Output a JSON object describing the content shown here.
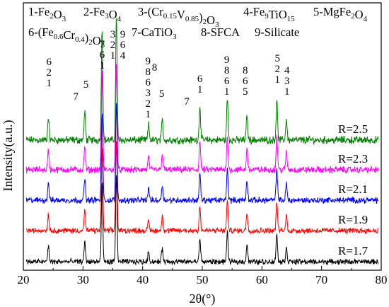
{
  "chart_data": {
    "type": "line",
    "xlabel": "2θ(°)",
    "ylabel": "Intensity(a.u.)",
    "xlim": [
      20,
      80
    ],
    "xticks": [
      "20",
      "30",
      "40",
      "50",
      "60",
      "70",
      "80"
    ],
    "legend": [
      {
        "num": "1",
        "name": "Fe",
        "sub": "2",
        "rest": "O",
        "sub2": "3"
      },
      {
        "num": "2",
        "name": "Fe",
        "sub": "3",
        "rest": "O",
        "sub2": "4"
      },
      {
        "num": "3",
        "name": "(Cr",
        "sub": "0.15",
        "rest": "V",
        "sub2": "0.85",
        "tail": ")",
        "sub3": "2",
        "tail2": "O",
        "sub4": "3"
      },
      {
        "num": "4",
        "name": "Fe",
        "sub": "9",
        "rest": "TiO",
        "sub2": "15"
      },
      {
        "num": "5",
        "name": "MgFe",
        "sub": "2",
        "rest": "O",
        "sub2": "4"
      },
      {
        "num": "6",
        "name": "(Fe",
        "sub": "0.6",
        "rest": "Cr",
        "sub2": "0.4",
        "tail": ")",
        "sub3": "2",
        "tail2": "O",
        "sub4": "3"
      },
      {
        "num": "7",
        "name": "CaTiO",
        "sub": "3"
      },
      {
        "num": "8",
        "name": "SFCA"
      },
      {
        "num": "9",
        "name": "Silicate"
      }
    ],
    "series": [
      {
        "name": "R=2.5",
        "color": "#008000"
      },
      {
        "name": "R=2.3",
        "color": "#ff00ff"
      },
      {
        "name": "R=2.1",
        "color": "#0000ff"
      },
      {
        "name": "R=1.9",
        "color": "#ff0000"
      },
      {
        "name": "R=1.7",
        "color": "#000000"
      }
    ],
    "peaks": [
      {
        "x": 24.2,
        "h": 0.18
      },
      {
        "x": 30.3,
        "h": 0.22
      },
      {
        "x": 33.2,
        "h": 0.9
      },
      {
        "x": 35.6,
        "h": 1.0
      },
      {
        "x": 41.0,
        "h": 0.12
      },
      {
        "x": 43.3,
        "h": 0.16
      },
      {
        "x": 49.6,
        "h": 0.27
      },
      {
        "x": 54.2,
        "h": 0.33
      },
      {
        "x": 57.5,
        "h": 0.2
      },
      {
        "x": 62.5,
        "h": 0.32
      },
      {
        "x": 64.1,
        "h": 0.17
      }
    ],
    "peak_annotations": [
      {
        "x": 24.3,
        "labels": [
          "6",
          "2",
          "1"
        ]
      },
      {
        "x": 28.8,
        "labels": [
          "7"
        ]
      },
      {
        "x": 30.5,
        "labels": [
          "5"
        ]
      },
      {
        "x": 33.2,
        "labels": [
          "7",
          "6",
          "1"
        ]
      },
      {
        "x": 35.6,
        "labels": [
          "3",
          "2",
          "1"
        ],
        "labels2": [
          "9",
          "6",
          "4"
        ]
      },
      {
        "x": 40.9,
        "labels": [
          "9",
          "8",
          "6",
          "3",
          "2",
          "1"
        ]
      },
      {
        "x": 42.0,
        "labels": [
          "8"
        ]
      },
      {
        "x": 43.2,
        "labels": [
          "5"
        ]
      },
      {
        "x": 47.4,
        "labels": [
          "7"
        ]
      },
      {
        "x": 49.6,
        "labels": [
          "6",
          "1"
        ]
      },
      {
        "x": 54.1,
        "labels": [
          "9",
          "8",
          "6",
          "1"
        ]
      },
      {
        "x": 57.2,
        "labels": [
          "8",
          "6",
          "5"
        ]
      },
      {
        "x": 62.6,
        "labels": [
          "5",
          "2",
          "1"
        ]
      },
      {
        "x": 64.2,
        "labels": [
          "4",
          "3",
          "1"
        ]
      }
    ]
  }
}
